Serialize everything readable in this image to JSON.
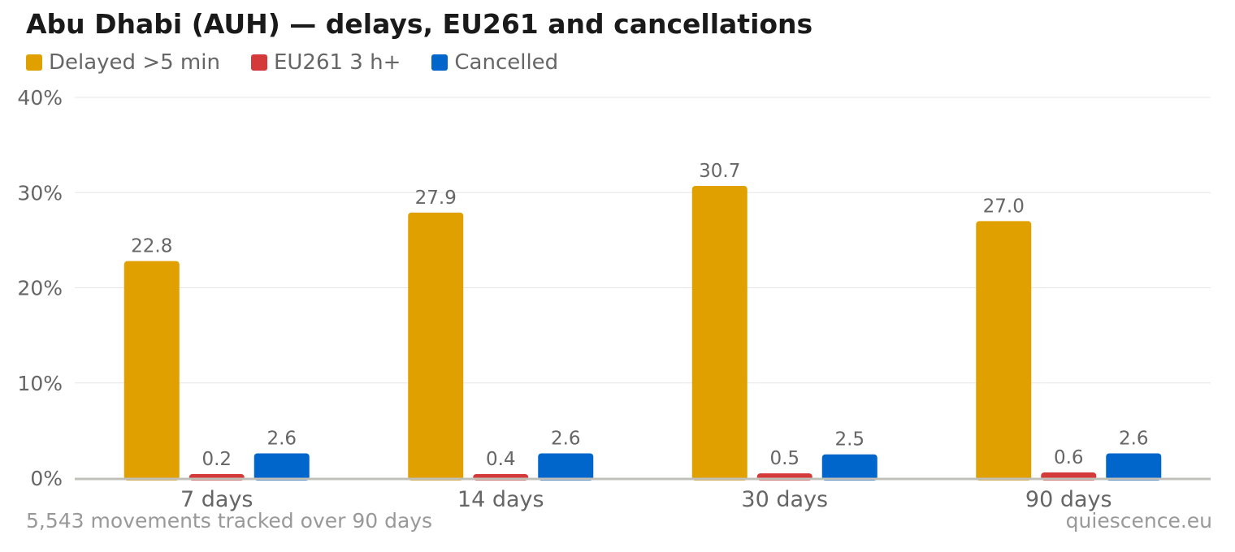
{
  "chart_data": {
    "type": "bar",
    "title": "Abu Dhabi (AUH) — delays, EU261 and cancellations",
    "categories": [
      "7 days",
      "14 days",
      "30 days",
      "90 days"
    ],
    "series": [
      {
        "name": "Delayed >5 min",
        "color": "#E0A000",
        "values": [
          22.8,
          27.9,
          30.7,
          27.0
        ],
        "labels": [
          "22.8",
          "27.9",
          "30.7",
          "27.0"
        ]
      },
      {
        "name": "EU261 3 h+",
        "color": "#D43A3A",
        "values": [
          0.2,
          0.4,
          0.5,
          0.6
        ],
        "labels": [
          "0.2",
          "0.4",
          "0.5",
          "0.6"
        ]
      },
      {
        "name": "Cancelled",
        "color": "#0066CC",
        "values": [
          2.6,
          2.6,
          2.5,
          2.6
        ],
        "labels": [
          "2.6",
          "2.6",
          "2.5",
          "2.6"
        ]
      }
    ],
    "ylim": [
      0,
      40
    ],
    "yticks": [
      "0%",
      "10%",
      "20%",
      "30%",
      "40%"
    ],
    "ytick_values": [
      0,
      10,
      20,
      30,
      40
    ],
    "xlabel": "",
    "ylabel": "",
    "grid": true,
    "legend": "top-left"
  },
  "footer": {
    "note": "5,543 movements tracked over 90 days",
    "source": "quiescence.eu"
  }
}
